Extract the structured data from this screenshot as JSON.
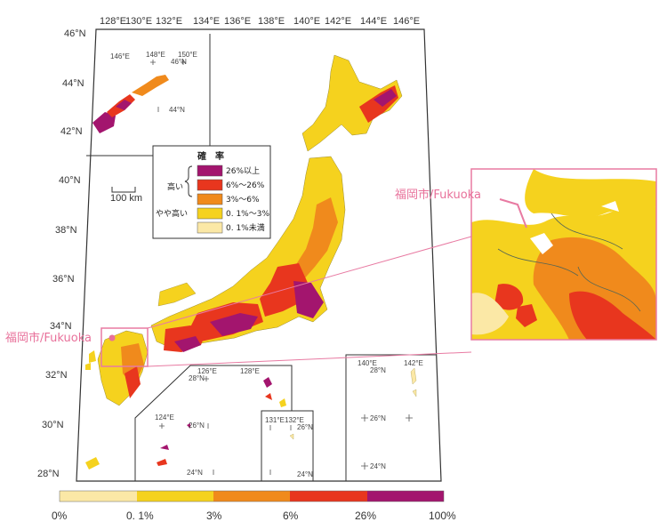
{
  "lon_ticks": [
    "128°E",
    "130°E",
    "132°E",
    "134°E",
    "136°E",
    "138°E",
    "140°E",
    "142°E",
    "144°E",
    "146°E"
  ],
  "lat_ticks": [
    "46°N",
    "44°N",
    "42°N",
    "40°N",
    "38°N",
    "36°N",
    "34°N",
    "32°N",
    "30°N",
    "28°N"
  ],
  "inset_kuril": {
    "labels": [
      "146°E",
      "148°E",
      "150°E",
      "46°N",
      "44°N"
    ]
  },
  "inset_ryukyu": {
    "labels": [
      "126°E",
      "128°E",
      "28°N",
      "124°E",
      "26°N",
      "24°N"
    ]
  },
  "inset_daito": {
    "labels": [
      "131°E",
      "132°E",
      "26°N",
      "24°N"
    ]
  },
  "inset_ogasawara": {
    "labels": [
      "140°E",
      "142°E",
      "28°N",
      "26°N",
      "24°N"
    ]
  },
  "legend": {
    "title": "確　率",
    "group_high": "高い",
    "group_midhigh": "やや高い",
    "items": [
      {
        "label": "26%以上",
        "color": "#a3156e"
      },
      {
        "label": "6%～26%",
        "color": "#e8361e"
      },
      {
        "label": "3%～6%",
        "color": "#f08a1c"
      },
      {
        "label": "0. 1%～3%",
        "color": "#f5d21e"
      },
      {
        "label": "0. 1%未満",
        "color": "#fbe8a6"
      }
    ]
  },
  "scale_bar": "100 km",
  "city_label_main": "福岡市/Fukuoka",
  "city_label_zoom": "福岡市/Fukuoka",
  "colorbar": {
    "labels": [
      "0%",
      "0. 1%",
      "3%",
      "6%",
      "26%",
      "100%"
    ],
    "colors": [
      "#fbe8a6",
      "#f5d21e",
      "#f08a1c",
      "#e8361e",
      "#a3156e"
    ]
  }
}
